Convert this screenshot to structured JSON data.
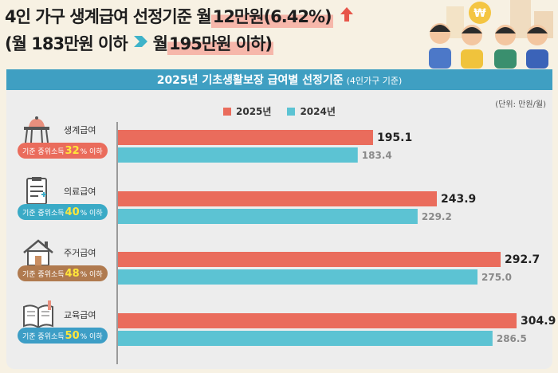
{
  "headline": {
    "line1_a": "4인 가구 생계급여 선정기준 월 ",
    "line1_b": "12만원(6.42%)",
    "line2_a": "(월 183만원 이하",
    "line2_b": "월 ",
    "line2_c": "195만원 이하)"
  },
  "panel": {
    "title": "2025년 기초생활보장 급여별 선정기준",
    "subtitle": "(4인가구 기준)",
    "unit": "(단위: 만원/월)"
  },
  "badge_prefix": "기준 중위소득 ",
  "badge_suffix": "% 이하",
  "categories": [
    {
      "name": "생계급여",
      "percent": "32",
      "icon": "dining-table-icon",
      "badge_color": "#ea6c5c"
    },
    {
      "name": "의료급여",
      "percent": "40",
      "icon": "medical-chart-icon",
      "badge_color": "#3aaac6"
    },
    {
      "name": "주거급여",
      "percent": "48",
      "icon": "house-icon",
      "badge_color": "#b07a4f"
    },
    {
      "name": "교육급여",
      "percent": "50",
      "icon": "books-icon",
      "badge_color": "#3d9ec6"
    }
  ],
  "colors": {
    "s2025": "#ea6c5c",
    "s2024": "#5cc3d3",
    "title_bar": "#3f9fc2"
  },
  "chart_data": {
    "type": "bar",
    "orientation": "horizontal",
    "categories": [
      "생계급여",
      "의료급여",
      "주거급여",
      "교육급여"
    ],
    "series": [
      {
        "name": "2025년",
        "values": [
          195.1,
          243.9,
          292.7,
          304.9
        ],
        "labels": [
          "195.1",
          "243.9",
          "292.7",
          "304.9"
        ]
      },
      {
        "name": "2024년",
        "values": [
          183.4,
          229.2,
          275.0,
          286.5
        ],
        "labels": [
          "183.4",
          "229.2",
          "275.0",
          "286.5"
        ]
      }
    ],
    "title": "2025년 기초생활보장 급여별 선정기준",
    "unit": "(단위: 만원/월)",
    "legend": "top-center",
    "grid": false
  }
}
